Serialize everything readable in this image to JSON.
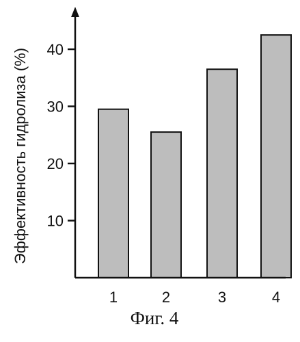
{
  "chart_data": {
    "type": "bar",
    "categories": [
      "1",
      "2",
      "3",
      "4"
    ],
    "values": [
      29.5,
      25.5,
      36.5,
      42.5
    ],
    "title": "",
    "xlabel": "",
    "ylabel": "Эффективность гидролиза (%)",
    "ylim": [
      0,
      45
    ],
    "yticks": [
      10,
      20,
      30,
      40
    ],
    "grid": false,
    "bar_color": "#bdbdbd",
    "edge_color": "#111111"
  },
  "caption": "Фиг. 4"
}
